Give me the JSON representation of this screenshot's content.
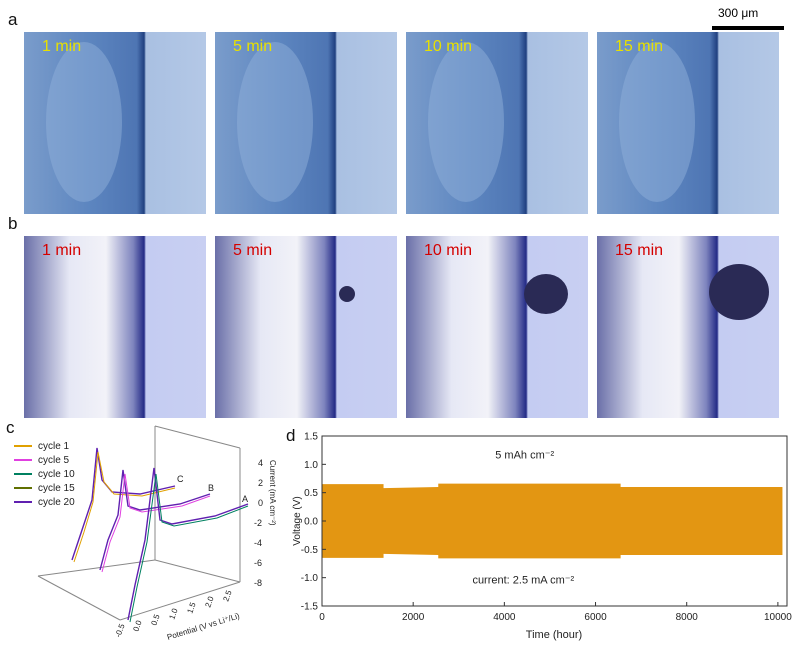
{
  "figure": {
    "panel_a_letter": "a",
    "panel_b_letter": "b",
    "panel_c_letter": "c",
    "panel_d_letter": "d",
    "scale_bar": "300 μm",
    "row_a_labels": [
      "1 min",
      "5 min",
      "10 min",
      "15 min"
    ],
    "row_b_labels": [
      "1 min",
      "5 min",
      "10 min",
      "15 min"
    ],
    "row_a_label_color": "#e8e000",
    "row_b_label_color": "#d40000"
  },
  "cv_plot": {
    "legend": [
      "cycle 1",
      "cycle 5",
      "cycle 10",
      "cycle 15",
      "cycle 20"
    ],
    "legend_colors": [
      "#e0a000",
      "#e040e0",
      "#008060",
      "#607000",
      "#6020b0"
    ],
    "z_axis_label": "Current (mA cm⁻²)",
    "z_ticks": [
      "4",
      "2",
      "0",
      "-2",
      "-4",
      "-6",
      "-8"
    ],
    "x_axis_label": "Potential (V vs Li⁺/Li)",
    "x_ticks": [
      "-0.5",
      "0.0",
      "0.5",
      "1.0",
      "1.5",
      "2.0",
      "2.5"
    ],
    "curve_letters": [
      "A",
      "B",
      "C"
    ]
  },
  "chart_data": {
    "type": "area",
    "title": "",
    "xlabel": "Time (hour)",
    "ylabel": "Voltage (V)",
    "xlim": [
      0,
      10200
    ],
    "ylim": [
      -1.5,
      1.5
    ],
    "x_ticks": [
      0,
      2000,
      4000,
      6000,
      8000,
      10000
    ],
    "y_ticks": [
      1.5,
      1.0,
      0.5,
      0.0,
      -0.5,
      -1.0,
      -1.5
    ],
    "y_tick_labels": [
      "1.5",
      "1.0",
      "0.5",
      "0.0",
      "-0.5",
      "-1.0",
      "-1.5"
    ],
    "annotations": [
      "5 mAh cm⁻²",
      "current: 2.5 mA cm⁻²"
    ],
    "fill_color": "#e39612",
    "series": [
      {
        "name": "upper envelope",
        "x": [
          0,
          1350,
          1350,
          2550,
          2550,
          6550,
          6550,
          10100
        ],
        "values": [
          0.65,
          0.65,
          0.58,
          0.6,
          0.66,
          0.66,
          0.6,
          0.6
        ]
      },
      {
        "name": "lower envelope",
        "x": [
          0,
          1350,
          1350,
          2550,
          2550,
          6550,
          6550,
          10100
        ],
        "values": [
          -0.65,
          -0.65,
          -0.58,
          -0.6,
          -0.66,
          -0.66,
          -0.6,
          -0.6
        ]
      }
    ]
  }
}
